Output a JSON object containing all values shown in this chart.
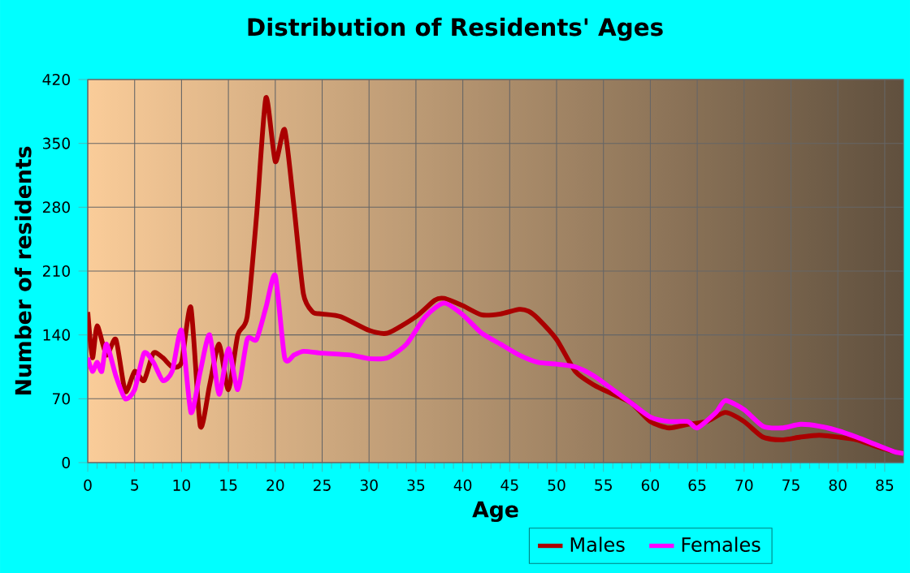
{
  "chart_data": {
    "type": "line",
    "title": "Distribution of Residents' Ages",
    "xlabel": "Age",
    "ylabel": "Number of residents",
    "xlim": [
      0,
      87
    ],
    "xticks": [
      0,
      5,
      10,
      15,
      20,
      25,
      30,
      35,
      40,
      45,
      50,
      55,
      60,
      65,
      70,
      75,
      80,
      85
    ],
    "ylim": [
      0,
      420
    ],
    "yticks": [
      0,
      70,
      140,
      210,
      280,
      350,
      420
    ],
    "grid": true,
    "legend": "bottom",
    "marker": "none",
    "line_style": "solid",
    "series": [
      {
        "name": "Males",
        "color": "#aa0000",
        "x": [
          0,
          0.5,
          1,
          2,
          3,
          4,
          5,
          6,
          7,
          8,
          9,
          10,
          11,
          12,
          13,
          14,
          15,
          16,
          17,
          18,
          19,
          20,
          21,
          22,
          23,
          24,
          25,
          27,
          30,
          32,
          35,
          37,
          38,
          40,
          42,
          44,
          46,
          47,
          48,
          50,
          52,
          54,
          56,
          58,
          60,
          62,
          64,
          66,
          68,
          70,
          72,
          74,
          76,
          78,
          80,
          82,
          84,
          86,
          87
        ],
        "values": [
          165,
          115,
          150,
          118,
          135,
          78,
          100,
          90,
          120,
          115,
          105,
          110,
          170,
          40,
          85,
          130,
          80,
          140,
          160,
          270,
          400,
          330,
          365,
          280,
          185,
          165,
          163,
          160,
          145,
          142,
          160,
          178,
          180,
          172,
          162,
          163,
          168,
          166,
          158,
          135,
          100,
          85,
          75,
          65,
          45,
          38,
          42,
          45,
          55,
          45,
          28,
          25,
          28,
          30,
          28,
          25,
          18,
          12,
          10
        ]
      },
      {
        "name": "Females",
        "color": "#ff00ff",
        "x": [
          0,
          0.5,
          1,
          1.5,
          2,
          3,
          4,
          5,
          6,
          7,
          8,
          9,
          10,
          11,
          12,
          13,
          14,
          15,
          16,
          17,
          18,
          19,
          20,
          21,
          22,
          23,
          25,
          28,
          30,
          32,
          34,
          36,
          38,
          40,
          42,
          44,
          46,
          48,
          50,
          52,
          54,
          56,
          58,
          60,
          62,
          64,
          65,
          67,
          68,
          70,
          72,
          74,
          76,
          78,
          80,
          82,
          84,
          86,
          87
        ],
        "values": [
          115,
          100,
          110,
          100,
          130,
          95,
          70,
          80,
          120,
          110,
          90,
          100,
          145,
          55,
          100,
          140,
          75,
          125,
          80,
          135,
          135,
          170,
          205,
          115,
          118,
          122,
          120,
          118,
          114,
          115,
          130,
          160,
          175,
          162,
          142,
          130,
          118,
          110,
          108,
          105,
          95,
          80,
          65,
          50,
          45,
          45,
          38,
          55,
          68,
          58,
          40,
          38,
          42,
          40,
          35,
          28,
          20,
          12,
          10
        ]
      }
    ]
  }
}
